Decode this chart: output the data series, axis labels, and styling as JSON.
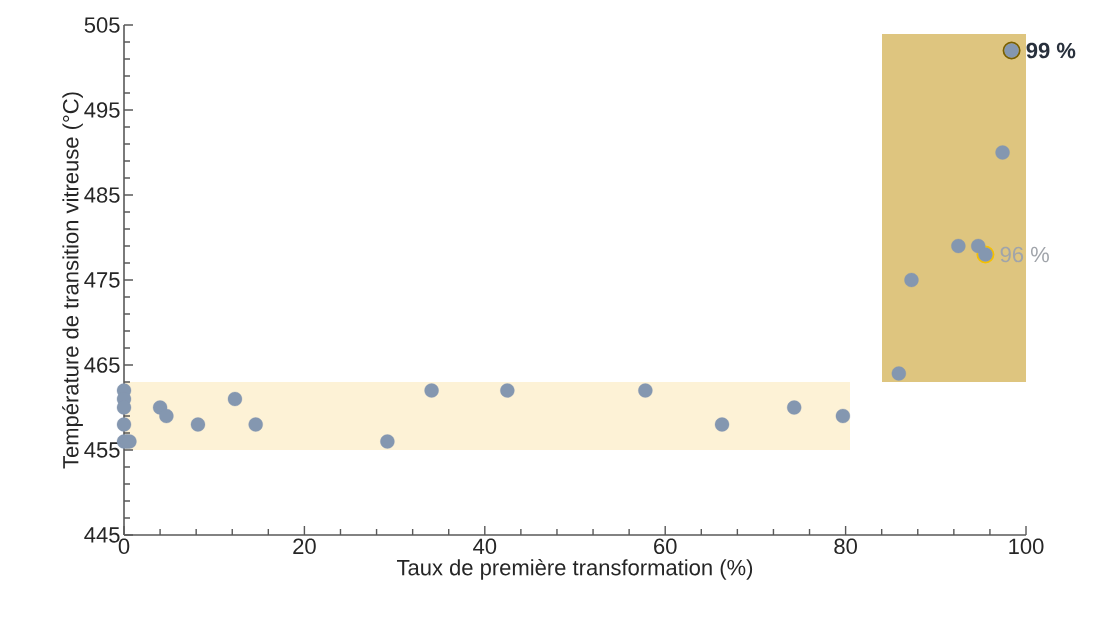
{
  "chart_data": {
    "type": "scatter",
    "xlabel": "Taux de première transformation (%)",
    "ylabel": "Température de transition vitreuse (°C)",
    "xlim": [
      0,
      100
    ],
    "ylim": [
      445,
      505
    ],
    "xticks": [
      0,
      20,
      40,
      60,
      80,
      100
    ],
    "yticks": [
      445,
      455,
      465,
      475,
      485,
      495,
      505
    ],
    "marker": "circle",
    "series": [
      {
        "color": "#8497b0",
        "x": [
          0,
          0,
          0,
          0,
          0,
          0.3,
          0.6,
          4,
          4.7,
          8.2,
          12.3,
          14.6,
          29.2,
          34.1,
          42.5,
          57.8,
          66.3,
          74.3,
          79.7,
          85.9,
          87.3,
          92.5,
          94.7,
          95.5,
          97.4,
          98.4
        ],
        "values": [
          462,
          461,
          460,
          458,
          456,
          456,
          456,
          460,
          459,
          458,
          461,
          458,
          456,
          462,
          462,
          462,
          458,
          460,
          459,
          464,
          475,
          479,
          479,
          478,
          490,
          502
        ]
      }
    ],
    "annotations": [
      {
        "text": "99 %",
        "x": 98.4,
        "y": 502
      },
      {
        "text": "96 %",
        "x": 95.5,
        "y": 478
      }
    ]
  }
}
